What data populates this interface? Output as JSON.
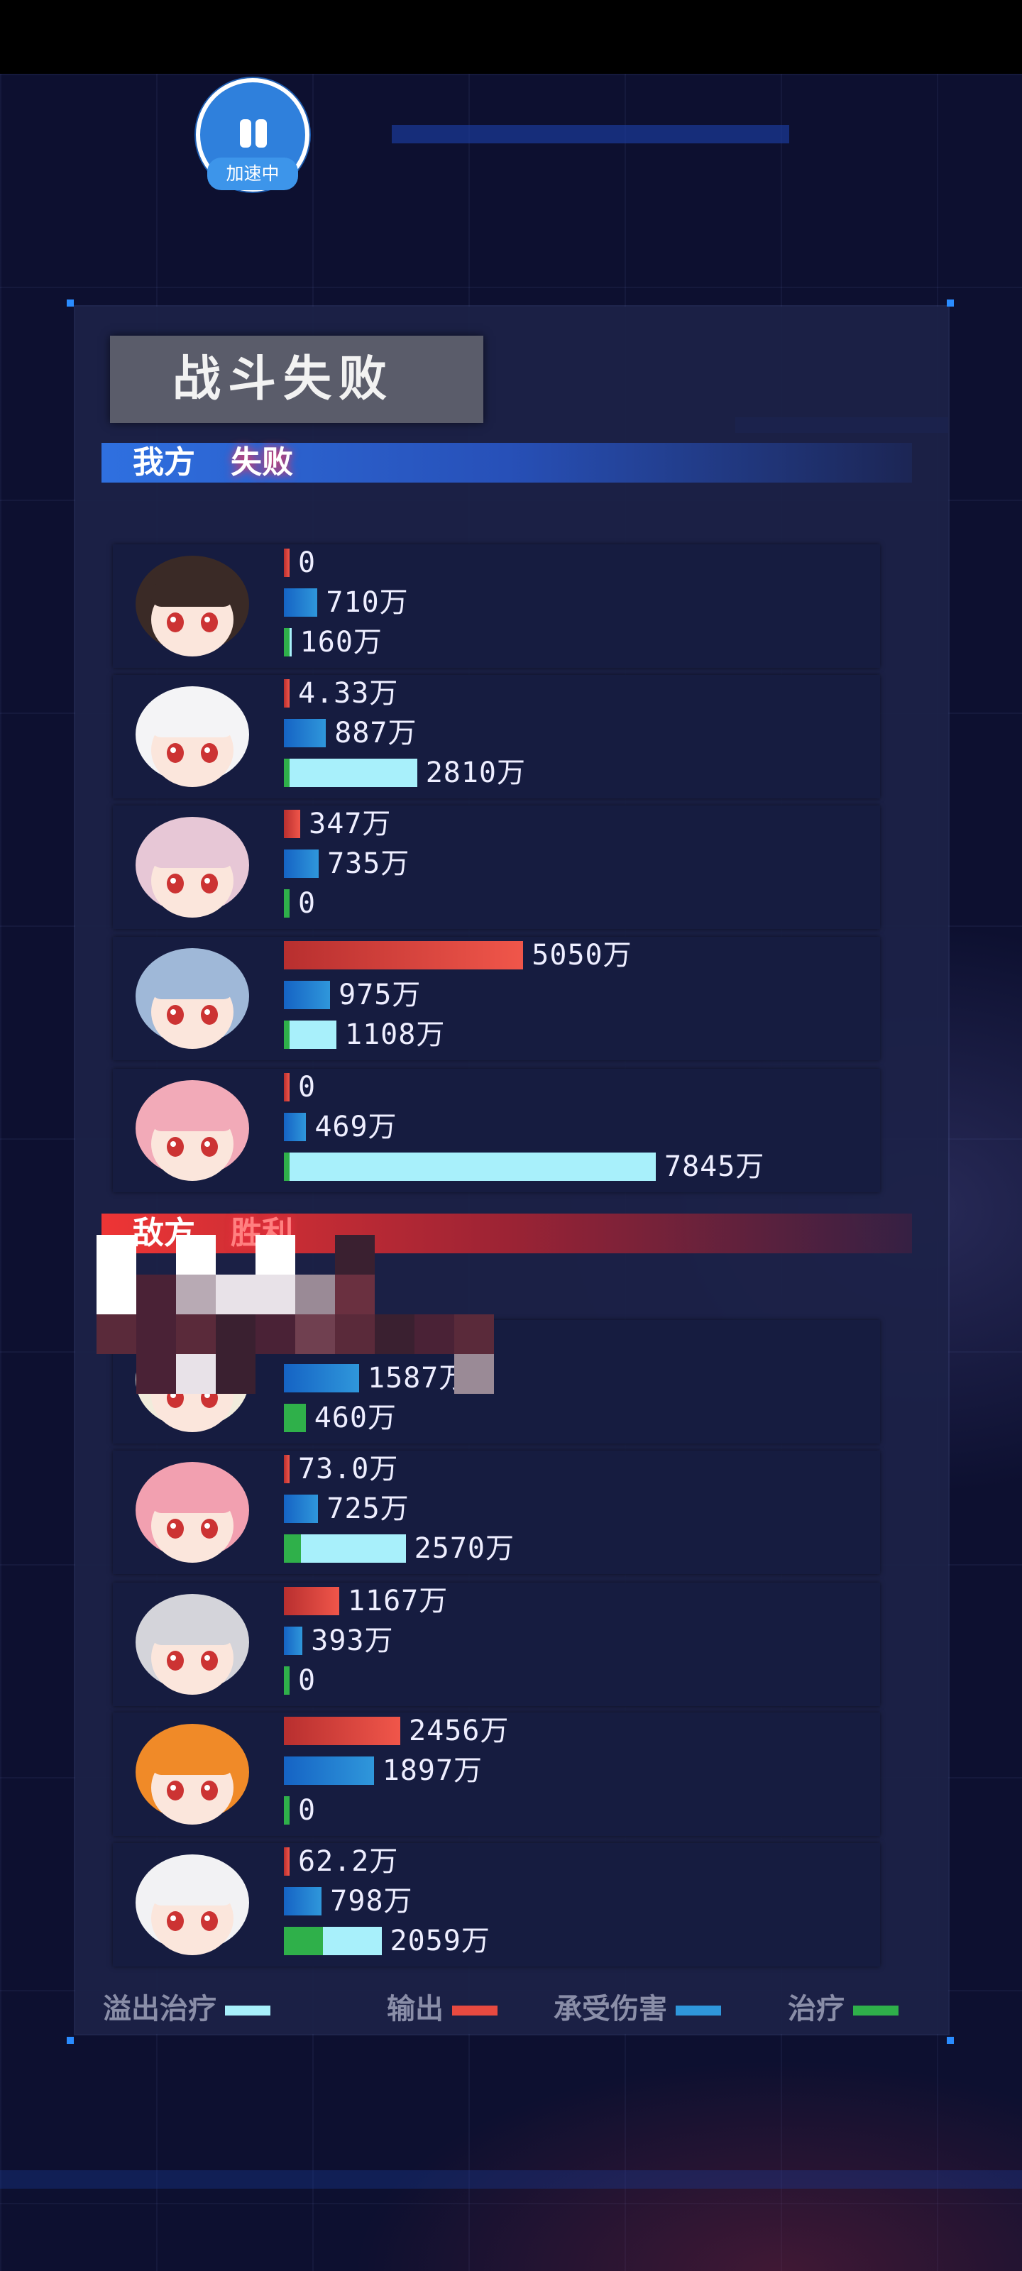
{
  "speed_button": {
    "label": "加速中"
  },
  "title": "战斗失败",
  "colors": {
    "output": "#f0564a",
    "damage_taken": "#2f97db",
    "heal": "#2fb04a",
    "overflow_heal": "#a8f0fb"
  },
  "our_side": {
    "label": "我方",
    "result": "失败",
    "members": [
      {
        "hair": "#3a2a26",
        "output": "0",
        "output_val": 0,
        "damage": "710万",
        "damage_val": 710,
        "heal": "160万",
        "heal_val": 160,
        "heal_green_frac": 0.3
      },
      {
        "hair": "#f4f4f6",
        "output": "4.33万",
        "output_val": 4.33,
        "damage": "887万",
        "damage_val": 887,
        "heal": "2810万",
        "heal_val": 2810,
        "heal_green_frac": 0.03
      },
      {
        "hair": "#e7c7d6",
        "output": "347万",
        "output_val": 347,
        "damage": "735万",
        "damage_val": 735,
        "heal": "0",
        "heal_val": 0,
        "heal_green_frac": 1
      },
      {
        "hair": "#9fb8d8",
        "output": "5050万",
        "output_val": 5050,
        "damage": "975万",
        "damage_val": 975,
        "heal": "1108万",
        "heal_val": 1108,
        "heal_green_frac": 0.06
      },
      {
        "hair": "#f2aab8",
        "output": "0",
        "output_val": 0,
        "damage": "469万",
        "damage_val": 469,
        "heal": "7845万",
        "heal_val": 7845,
        "heal_green_frac": 0.01
      }
    ]
  },
  "enemy_side": {
    "label": "敌方",
    "result": "胜利",
    "members": [
      {
        "hair": "#f1ecdc",
        "output": "",
        "output_val": null,
        "damage": "1587万",
        "damage_val": 1587,
        "heal": "460万",
        "heal_val": 460,
        "heal_green_frac": 1
      },
      {
        "hair": "#f2a0b0",
        "output": "73.0万",
        "output_val": 73,
        "damage": "725万",
        "damage_val": 725,
        "heal": "2570万",
        "heal_val": 2570,
        "heal_green_frac": 0.14
      },
      {
        "hair": "#d4d4da",
        "output": "1167万",
        "output_val": 1167,
        "damage": "393万",
        "damage_val": 393,
        "heal": "0",
        "heal_val": 0,
        "heal_green_frac": 1
      },
      {
        "hair": "#f08a28",
        "output": "2456万",
        "output_val": 2456,
        "damage": "1897万",
        "damage_val": 1897,
        "heal": "0",
        "heal_val": 0,
        "heal_green_frac": 1
      },
      {
        "hair": "#f2f2f4",
        "output": "62.2万",
        "output_val": 62.2,
        "damage": "798万",
        "damage_val": 798,
        "heal": "2059万",
        "heal_val": 2059,
        "heal_green_frac": 0.4
      }
    ]
  },
  "legend": [
    {
      "label": "溢出治疗",
      "color": "#a8f0fb"
    },
    {
      "label": "输出",
      "color": "#e84a40"
    },
    {
      "label": "承受伤害",
      "color": "#2f97db"
    },
    {
      "label": "治疗",
      "color": "#2fb04a"
    }
  ]
}
